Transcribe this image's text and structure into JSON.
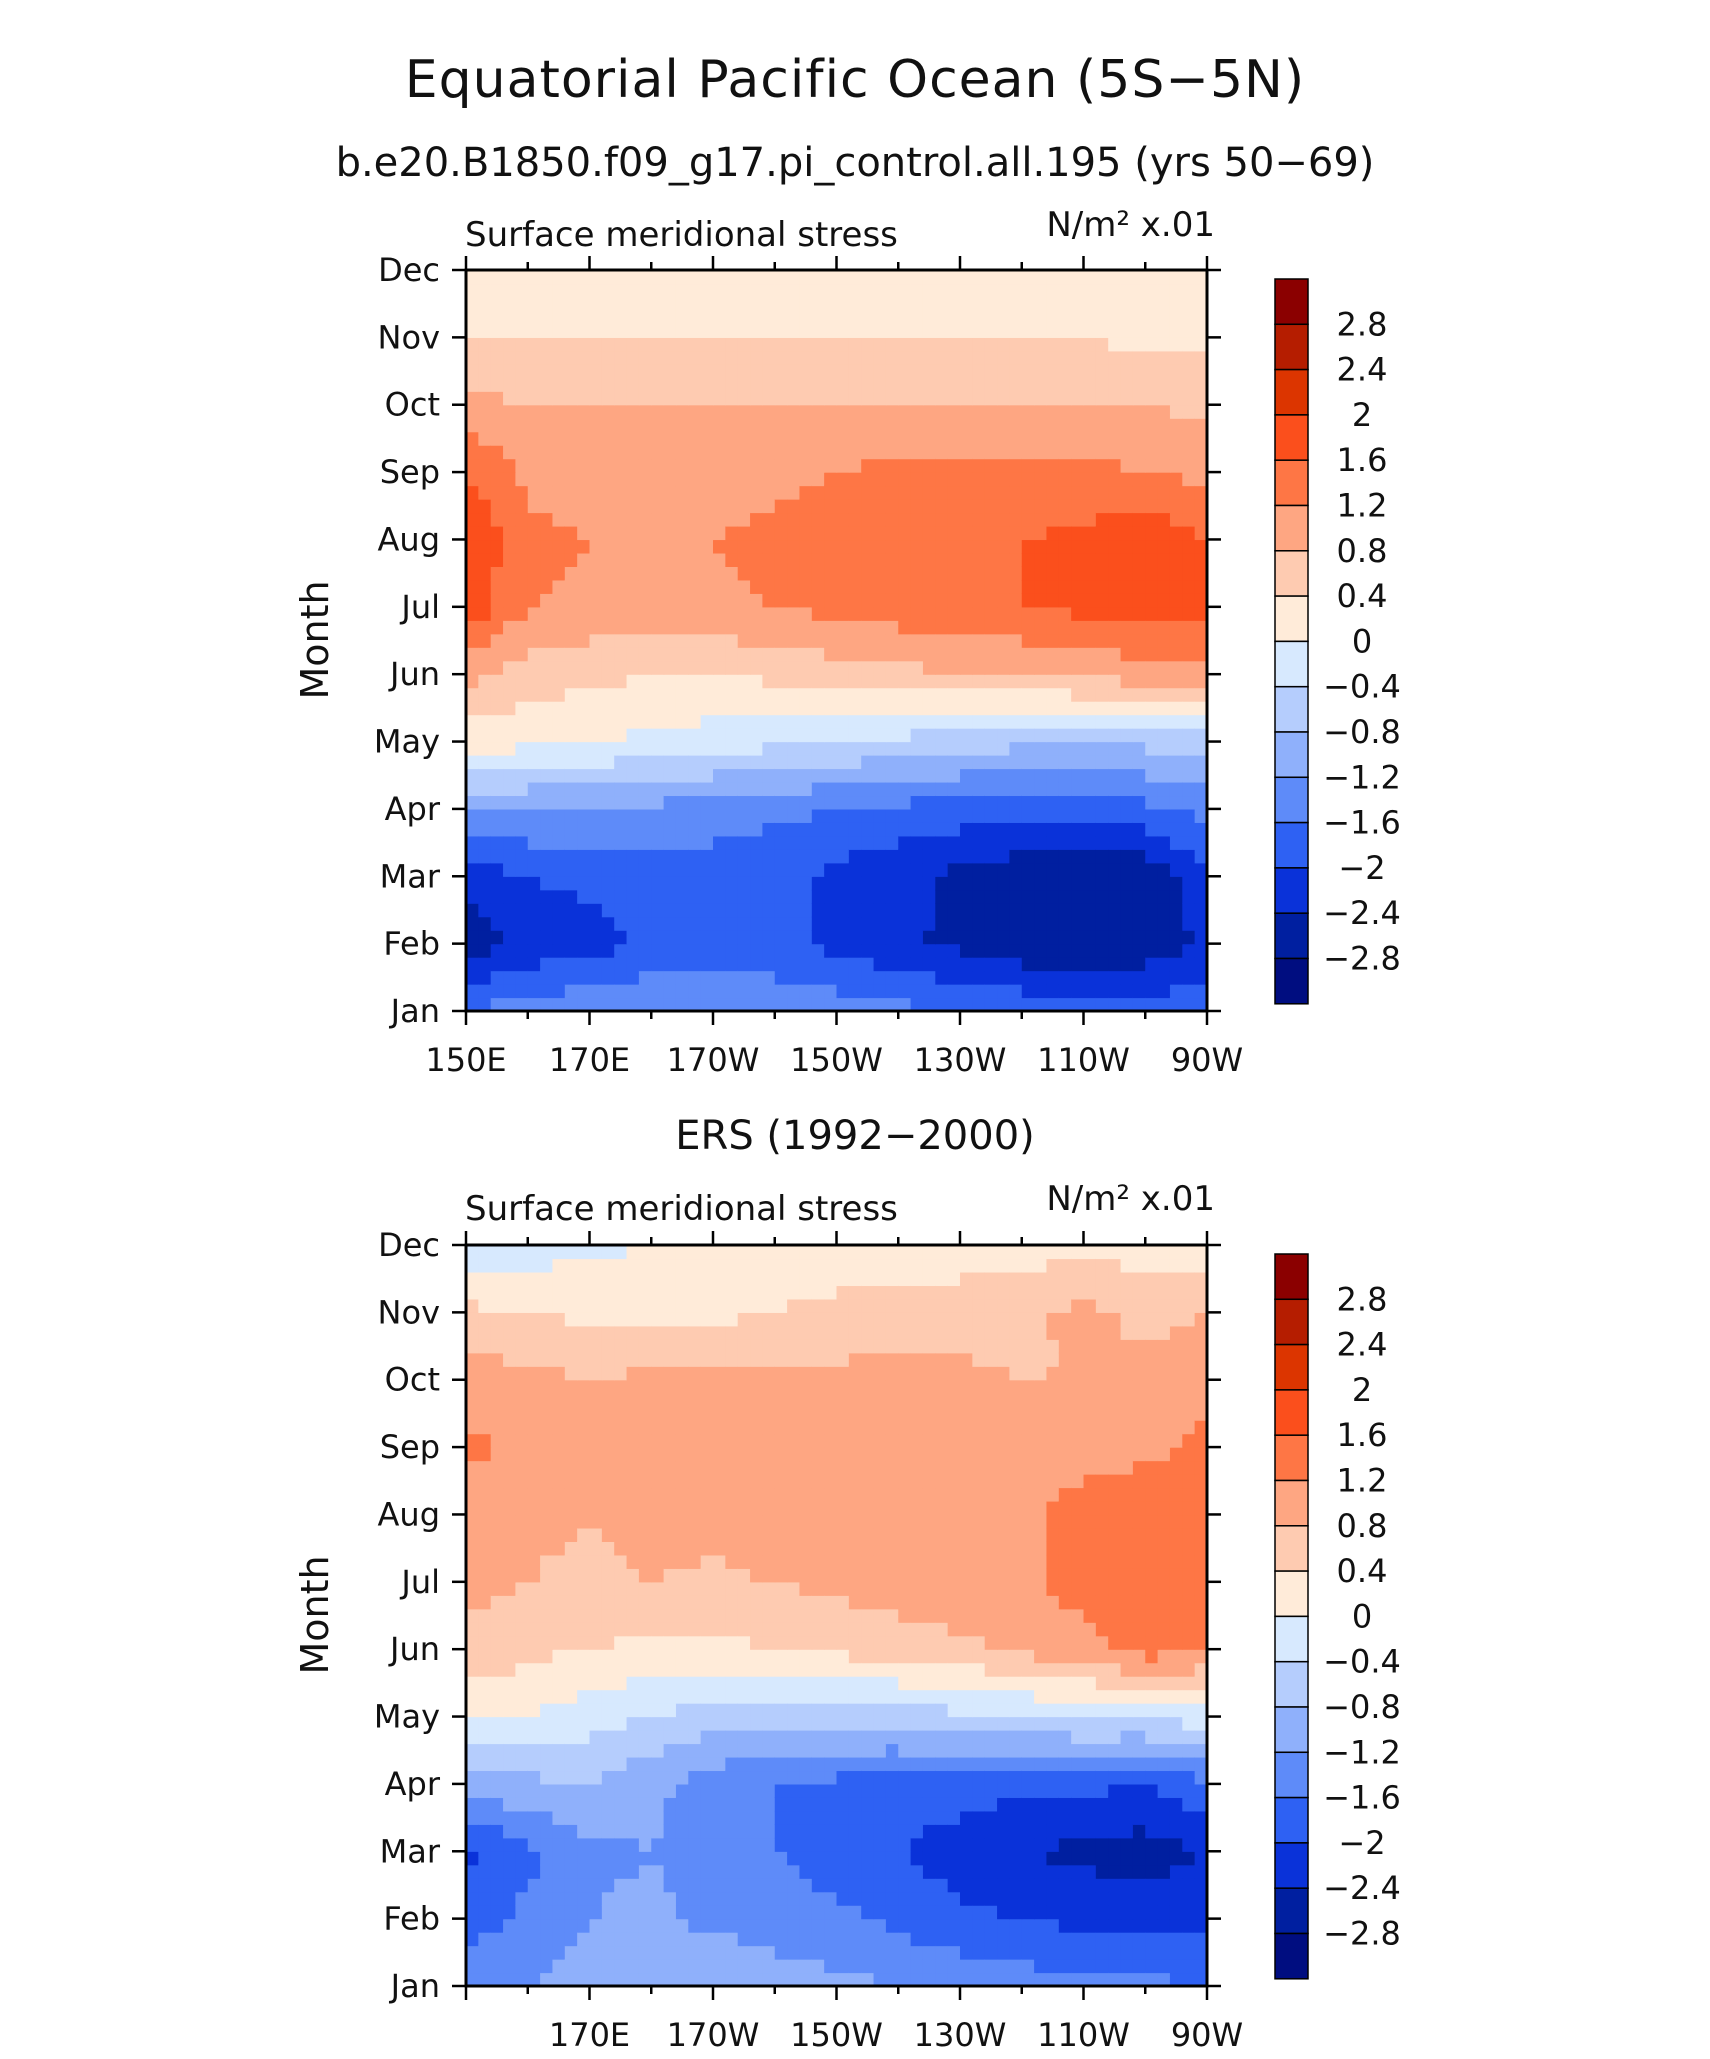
{
  "title": "Equatorial Pacific Ocean (5S−5N)",
  "colorbar": {
    "levels": [
      "2.8",
      "2.4",
      "2",
      "1.6",
      "1.2",
      "0.8",
      "0.4",
      "0",
      "−0.4",
      "−0.8",
      "−1.2",
      "−1.6",
      "−2",
      "−2.4",
      "−2.8"
    ],
    "colors": [
      "#8b0000",
      "#b51d00",
      "#dc3500",
      "#fb4f1c",
      "#fe7645",
      "#fea682",
      "#fecbb1",
      "#ffebd9",
      "#d7e9fe",
      "#b5cdfd",
      "#8fb0fb",
      "#5e8bf9",
      "#2e61f3",
      "#0a32d9",
      "#001fa0",
      "#000d80"
    ]
  },
  "chart_data": [
    {
      "type": "heatmap",
      "subtitle": "b.e20.B1850.f09_g17.pi_control.all.195 (yrs 50−69)",
      "panel_title": "Surface meridional stress",
      "units": "N/m² x.01",
      "ylabel": "Month",
      "x_ticks": [
        "150E",
        "170E",
        "170W",
        "150W",
        "130W",
        "110W",
        "90W"
      ],
      "y_ticks": [
        "Jan",
        "Feb",
        "Mar",
        "Apr",
        "May",
        "Jun",
        "Jul",
        "Aug",
        "Sep",
        "Oct",
        "Nov",
        "Dec"
      ],
      "x": [
        150,
        160,
        170,
        180,
        190,
        200,
        210,
        220,
        230,
        240,
        250,
        260,
        270
      ],
      "y": [
        "Jan",
        "Feb",
        "Mar",
        "Apr",
        "May",
        "Jun",
        "Jul",
        "Aug",
        "Sep",
        "Oct",
        "Nov",
        "Dec"
      ],
      "z": [
        [
          -1.6,
          -1.4,
          -1.3,
          -1.2,
          -1.2,
          -1.3,
          -1.4,
          -1.5,
          -1.6,
          -1.7,
          -1.8,
          -1.8,
          -1.7
        ],
        [
          -2.6,
          -2.3,
          -2.2,
          -1.9,
          -1.8,
          -1.9,
          -2.1,
          -2.3,
          -2.5,
          -2.7,
          -2.8,
          -2.7,
          -2.3
        ],
        [
          -2.3,
          -2.0,
          -1.9,
          -1.8,
          -1.8,
          -1.9,
          -2.1,
          -2.3,
          -2.5,
          -2.7,
          -2.8,
          -2.7,
          -2.1
        ],
        [
          -1.1,
          -1.2,
          -1.2,
          -1.3,
          -1.4,
          -1.5,
          -1.6,
          -1.7,
          -1.8,
          -1.8,
          -1.8,
          -1.7,
          -1.5
        ],
        [
          0.2,
          0.1,
          0.0,
          -0.1,
          -0.2,
          -0.3,
          -0.4,
          -0.5,
          -0.6,
          -0.7,
          -0.7,
          -0.7,
          -0.6
        ],
        [
          0.9,
          0.6,
          0.5,
          0.4,
          0.4,
          0.5,
          0.6,
          0.7,
          0.8,
          0.8,
          0.9,
          1.0,
          1.1
        ],
        [
          1.9,
          1.2,
          1.1,
          1.0,
          1.1,
          1.2,
          1.3,
          1.4,
          1.5,
          1.6,
          1.7,
          1.8,
          1.7
        ],
        [
          2.0,
          1.3,
          1.2,
          1.1,
          1.2,
          1.3,
          1.4,
          1.5,
          1.5,
          1.6,
          1.7,
          1.9,
          1.6
        ],
        [
          1.6,
          1.1,
          1.0,
          0.9,
          1.0,
          1.1,
          1.2,
          1.3,
          1.3,
          1.3,
          1.3,
          1.2,
          1.1
        ],
        [
          0.9,
          0.8,
          0.8,
          0.8,
          0.8,
          0.8,
          0.8,
          0.8,
          0.8,
          0.8,
          0.8,
          0.8,
          0.7
        ],
        [
          0.4,
          0.4,
          0.4,
          0.4,
          0.4,
          0.4,
          0.4,
          0.4,
          0.4,
          0.4,
          0.4,
          0.3,
          0.3
        ],
        [
          0.0,
          0.1,
          0.1,
          0.1,
          0.2,
          0.2,
          0.2,
          0.3,
          0.3,
          0.3,
          0.2,
          0.1,
          0.0
        ]
      ]
    },
    {
      "type": "heatmap",
      "subtitle": "ERS (1992−2000)",
      "panel_title": "Surface meridional stress",
      "units": "N/m² x.01",
      "ylabel": "Month",
      "x_ticks": [
        "170E",
        "170W",
        "150W",
        "130W",
        "110W",
        "90W"
      ],
      "y_ticks": [
        "Jan",
        "Feb",
        "Mar",
        "Apr",
        "May",
        "Jun",
        "Jul",
        "Aug",
        "Sep",
        "Oct",
        "Nov",
        "Dec"
      ],
      "x": [
        150,
        160,
        170,
        180,
        190,
        200,
        210,
        220,
        230,
        240,
        250,
        260,
        270
      ],
      "y": [
        "Jan",
        "Feb",
        "Mar",
        "Apr",
        "May",
        "Jun",
        "Jul",
        "Aug",
        "Sep",
        "Oct",
        "Nov",
        "Dec"
      ],
      "z": [
        [
          -1.4,
          -1.2,
          -1.0,
          -1.0,
          -0.8,
          -1.0,
          -1.1,
          -1.2,
          -1.3,
          -1.4,
          -1.5,
          -1.5,
          -1.6
        ],
        [
          -1.8,
          -1.5,
          -1.2,
          -1.1,
          -1.3,
          -1.4,
          -1.5,
          -1.7,
          -1.9,
          -2.0,
          -2.1,
          -2.2,
          -2.1
        ],
        [
          -2.1,
          -1.7,
          -1.3,
          -1.2,
          -1.4,
          -1.6,
          -1.8,
          -2.0,
          -2.2,
          -2.4,
          -2.5,
          -2.6,
          -2.4
        ],
        [
          -1.0,
          -0.9,
          -0.8,
          -1.1,
          -1.4,
          -1.6,
          -1.7,
          -1.8,
          -1.8,
          -1.9,
          -1.9,
          -2.0,
          -1.7
        ],
        [
          0.1,
          0.0,
          -0.2,
          -0.4,
          -0.6,
          -0.7,
          -0.7,
          -0.6,
          -0.5,
          -0.4,
          -0.3,
          -0.3,
          -0.2
        ],
        [
          0.7,
          0.5,
          0.4,
          0.3,
          0.3,
          0.4,
          0.5,
          0.6,
          0.7,
          0.9,
          1.0,
          1.4,
          1.2
        ],
        [
          0.9,
          0.8,
          0.7,
          0.8,
          0.7,
          0.8,
          0.9,
          1.0,
          1.1,
          1.1,
          1.4,
          1.6,
          1.5
        ],
        [
          1.0,
          0.9,
          0.8,
          1.0,
          1.0,
          1.1,
          1.1,
          1.2,
          1.2,
          1.1,
          1.4,
          1.5,
          1.4
        ],
        [
          1.3,
          1.1,
          0.9,
          1.0,
          1.1,
          1.2,
          1.2,
          1.1,
          1.1,
          1.0,
          1.0,
          1.1,
          1.3
        ],
        [
          1.0,
          0.9,
          0.8,
          0.9,
          0.9,
          0.9,
          0.9,
          1.0,
          0.9,
          0.8,
          0.8,
          0.9,
          1.1
        ],
        [
          0.5,
          0.4,
          0.3,
          0.3,
          0.3,
          0.4,
          0.5,
          0.5,
          0.6,
          0.7,
          0.9,
          0.7,
          0.8
        ],
        [
          -0.3,
          -0.2,
          -0.1,
          0.0,
          0.1,
          0.1,
          0.2,
          0.2,
          0.2,
          0.2,
          0.3,
          0.2,
          0.1
        ]
      ]
    }
  ]
}
